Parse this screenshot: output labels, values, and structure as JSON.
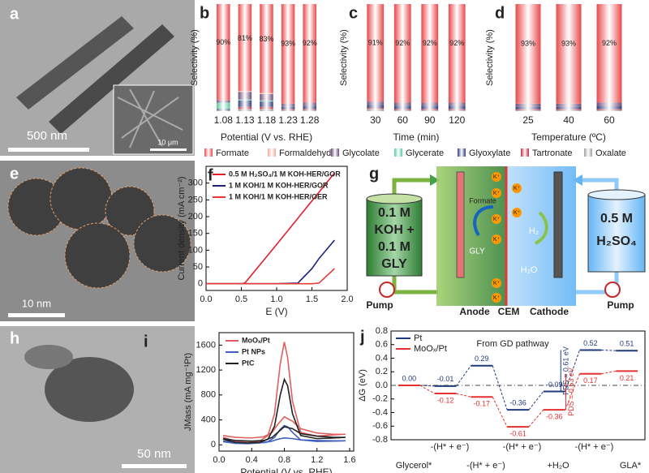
{
  "micrographs": [
    {
      "panel": "a",
      "scale_bar": "500 nm",
      "inset_scale_bar": "10 μm"
    },
    {
      "panel": "e",
      "scale_bar": "10 nm"
    },
    {
      "panel": "h",
      "scale_bar": "50 nm"
    }
  ],
  "legend": [
    {
      "name": "Formate",
      "color": "#e8484a"
    },
    {
      "name": "Formaldehyde",
      "color": "#f2a8a0"
    },
    {
      "name": "Glycolate",
      "color": "#6b4b7a"
    },
    {
      "name": "Glycerate",
      "color": "#5cc9a0"
    },
    {
      "name": "Glyoxylate",
      "color": "#2f3c7a"
    },
    {
      "name": "Tartronate",
      "color": "#c03040"
    },
    {
      "name": "Oxalate",
      "color": "#a0a0a0"
    }
  ],
  "chart_data": [
    {
      "type": "bar",
      "panel": "b",
      "ylabel": "Selectivity (%)",
      "xlabel": "Potential (V vs. RHE)",
      "categories": [
        "1.08",
        "1.13",
        "1.18",
        "1.23",
        "1.28"
      ],
      "ylim": [
        0,
        100
      ],
      "series": [
        {
          "values": [
            90,
            81,
            83,
            93,
            92
          ],
          "value_labels": [
            "90%",
            "81%",
            "83%",
            "93%",
            "92%"
          ]
        },
        {
          "values": [
            0,
            1,
            1,
            0,
            0
          ]
        },
        {
          "values": [
            2,
            7,
            6,
            3,
            3
          ]
        },
        {
          "values": [
            6,
            1,
            1,
            0,
            0
          ]
        },
        {
          "values": [
            1,
            6,
            5,
            2,
            3
          ]
        },
        {
          "values": [
            0,
            2,
            2,
            1,
            1
          ]
        },
        {
          "values": [
            1,
            2,
            2,
            1,
            1
          ]
        }
      ]
    },
    {
      "type": "bar",
      "panel": "c",
      "ylabel": "Selectivity (%)",
      "xlabel": "Time (min)",
      "categories": [
        "30",
        "60",
        "90",
        "120"
      ],
      "ylim": [
        0,
        100
      ],
      "series": [
        {
          "values": [
            91,
            92,
            92,
            92
          ],
          "value_labels": [
            "91%",
            "92%",
            "92%",
            "92%"
          ]
        },
        {
          "values": [
            0,
            0,
            0,
            0
          ]
        },
        {
          "values": [
            3,
            3,
            3,
            3
          ]
        },
        {
          "values": [
            0,
            0,
            0,
            0
          ]
        },
        {
          "values": [
            3,
            3,
            3,
            3
          ]
        },
        {
          "values": [
            1,
            1,
            1,
            1
          ]
        },
        {
          "values": [
            2,
            1,
            1,
            1
          ]
        }
      ]
    },
    {
      "type": "bar",
      "panel": "d",
      "ylabel": "Selectivity (%)",
      "xlabel": "Temperature (ºC)",
      "categories": [
        "25",
        "40",
        "60"
      ],
      "ylim": [
        0,
        100
      ],
      "series": [
        {
          "values": [
            93,
            93,
            92
          ],
          "value_labels": [
            "93%",
            "93%",
            "92%"
          ]
        },
        {
          "values": [
            0,
            0,
            0
          ]
        },
        {
          "values": [
            3,
            3,
            3
          ]
        },
        {
          "values": [
            0,
            0,
            0
          ]
        },
        {
          "values": [
            2,
            2,
            3
          ]
        },
        {
          "values": [
            1,
            1,
            1
          ]
        },
        {
          "values": [
            1,
            1,
            1
          ]
        }
      ]
    },
    {
      "type": "line",
      "panel": "f",
      "ylabel": "Current density (mA cm⁻²)",
      "xlabel": "E (V)",
      "xlim": [
        0,
        2.0
      ],
      "ylim": [
        -20,
        350
      ],
      "xticks": [
        {
          "value": 0,
          "label": "0.0"
        },
        0.5,
        {
          "value": 1,
          "label": "1.0"
        },
        1.5,
        {
          "value": 2,
          "label": "2.0"
        }
      ],
      "yticks": [
        0,
        50,
        100,
        150,
        200,
        250,
        300
      ],
      "x": [
        0,
        0.5,
        0.55,
        1.0,
        1.3,
        1.5,
        1.6,
        1.82
      ],
      "series": [
        {
          "name": "0.5 M H₂SO₄/1 M KOH-HER/GOR",
          "color": "#e0202a",
          "values": [
            0,
            0,
            2,
            117,
            195,
            247,
            273,
            330
          ]
        },
        {
          "name": "1 M KOH/1 M KOH-HER/GOR",
          "color": "#1a237e",
          "values": [
            0,
            0,
            0,
            0,
            2,
            45,
            75,
            130
          ]
        },
        {
          "name": "1 M KOH/1 M KOH-HER/OER",
          "color": "#e83838",
          "values": [
            0,
            0,
            0,
            0,
            0,
            0,
            2,
            45
          ]
        }
      ]
    },
    {
      "type": "line",
      "panel": "i",
      "ylabel": "JMass (mA mg⁻¹Pt)",
      "xlabel": "Potential (V vs. RHE)",
      "xlim": [
        0,
        1.65
      ],
      "ylim": [
        -100,
        1800
      ],
      "xticks": [
        {
          "value": 0,
          "label": "0.0"
        },
        0.4,
        0.8,
        1.2,
        1.6
      ],
      "yticks": [
        0,
        400,
        800,
        1200,
        1600
      ],
      "x": [
        0.05,
        0.2,
        0.4,
        0.55,
        0.65,
        0.72,
        0.8,
        0.9,
        1.0,
        1.2,
        1.4,
        1.55,
        1.4,
        1.2,
        1.0,
        0.9,
        0.84,
        0.8,
        0.75,
        0.68,
        0.6,
        0.5,
        0.35,
        0.2,
        0.05
      ],
      "series": [
        {
          "name": "MoOₓ/Pt",
          "color": "#e06060",
          "values": [
            150,
            120,
            110,
            130,
            200,
            330,
            450,
            380,
            260,
            190,
            170,
            170,
            160,
            140,
            200,
            700,
            1400,
            1650,
            1300,
            500,
            150,
            60,
            40,
            60,
            120
          ]
        },
        {
          "name": "Pt NPs",
          "color": "#4060c0",
          "values": [
            60,
            40,
            30,
            35,
            60,
            90,
            110,
            100,
            80,
            70,
            65,
            65,
            60,
            55,
            80,
            200,
            290,
            310,
            250,
            120,
            50,
            30,
            20,
            25,
            50
          ]
        },
        {
          "name": "PtC",
          "color": "#222222",
          "values": [
            100,
            70,
            60,
            70,
            120,
            200,
            290,
            260,
            180,
            140,
            120,
            120,
            110,
            100,
            150,
            500,
            950,
            1050,
            800,
            300,
            90,
            40,
            30,
            40,
            90
          ]
        }
      ]
    },
    {
      "type": "step",
      "panel": "j",
      "ylabel": "ΔG (eV)",
      "title": "From GD pathway",
      "ylim": [
        -0.8,
        0.8
      ],
      "yticks": [
        {
          "value": -0.8,
          "label": "-0.8"
        },
        {
          "value": -0.6,
          "label": "-0.6"
        },
        {
          "value": -0.4,
          "label": "-0.4"
        },
        {
          "value": -0.2,
          "label": "-0.2"
        },
        {
          "value": 0,
          "label": "0.0"
        },
        0.2,
        0.4,
        0.6,
        0.8
      ],
      "step_labels": [
        "Glycerol*",
        "-(H* + e⁻)",
        "-(H* + e⁻)",
        "-(H* + e⁻)",
        "+H₂O",
        "-(H* + e⁻)",
        "GLA*"
      ],
      "series": [
        {
          "name": "Pt",
          "color": "#1f3a7a",
          "values": [
            0,
            -0.01,
            0.29,
            -0.36,
            -0.09,
            0.52,
            0.51
          ],
          "value_labels": [
            "0.00",
            "-0.01",
            "0.29",
            "-0.36",
            "-0.09",
            "0.52",
            "0.51"
          ]
        },
        {
          "name": "MoOₓ/Pt",
          "color": "#e53030",
          "values": [
            0,
            -0.12,
            -0.17,
            -0.61,
            -0.36,
            0.17,
            0.21
          ],
          "value_labels": [
            null,
            "-0.12",
            "-0.17",
            "-0.61",
            "-0.36",
            "0.17",
            "0.21"
          ]
        }
      ],
      "annotations": [
        "PDS = 0.61 eV",
        "PDS = 0.53 eV"
      ]
    }
  ],
  "diagram": {
    "panel": "g",
    "anolyte": [
      "0.1 M",
      "KOH +",
      "0.1 M",
      "GLY"
    ],
    "catholyte": [
      "0.5 M",
      "H₂SO₄"
    ],
    "pumps": [
      "Pump",
      "Pump"
    ],
    "anode": "Anode",
    "membrane": "CEM",
    "cathode": "Cathode",
    "product": "Formate",
    "reactant": "GLY",
    "gas": "H₂",
    "water": "H₂O",
    "ions": [
      "K⁺",
      "K⁺",
      "K⁺",
      "K⁺",
      "K⁺",
      "K⁺",
      "K⁺",
      "K⁺"
    ]
  }
}
